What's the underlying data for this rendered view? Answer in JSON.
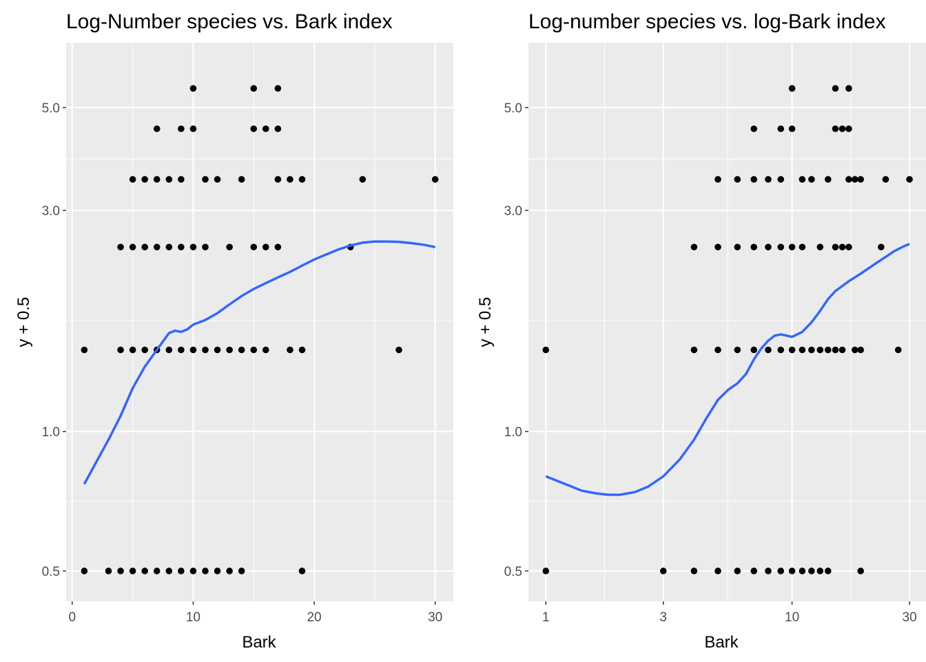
{
  "chart_data": [
    {
      "type": "scatter",
      "title": "Log-Number species vs. Bark index",
      "xlabel": "Bark",
      "ylabel": "y + 0.5",
      "xscale": "linear",
      "yscale": "log",
      "xlim": [
        -0.5,
        31.5
      ],
      "ylim": [
        0.43,
        6.9
      ],
      "x_ticks": [
        0,
        10,
        20,
        30
      ],
      "x_tick_labels": [
        "0",
        "10",
        "20",
        "30"
      ],
      "x_minor_ticks": [
        5,
        15,
        25
      ],
      "y_ticks": [
        0.5,
        1.0,
        3.0,
        5.0
      ],
      "y_tick_labels": [
        "0.5",
        "1.0",
        "3.0",
        "5.0"
      ],
      "y_minor_ticks": [
        0.707,
        1.732,
        3.873
      ],
      "grid": true,
      "points": [
        [
          1,
          0.5
        ],
        [
          3,
          0.5
        ],
        [
          4,
          0.5
        ],
        [
          5,
          0.5
        ],
        [
          6,
          0.5
        ],
        [
          7,
          0.5
        ],
        [
          8,
          0.5
        ],
        [
          9,
          0.5
        ],
        [
          10,
          0.5
        ],
        [
          11,
          0.5
        ],
        [
          12,
          0.5
        ],
        [
          13,
          0.5
        ],
        [
          14,
          0.5
        ],
        [
          19,
          0.5
        ],
        [
          1,
          1.5
        ],
        [
          4,
          1.5
        ],
        [
          5,
          1.5
        ],
        [
          6,
          1.5
        ],
        [
          7,
          1.5
        ],
        [
          8,
          1.5
        ],
        [
          9,
          1.5
        ],
        [
          10,
          1.5
        ],
        [
          11,
          1.5
        ],
        [
          12,
          1.5
        ],
        [
          13,
          1.5
        ],
        [
          14,
          1.5
        ],
        [
          15,
          1.5
        ],
        [
          16,
          1.5
        ],
        [
          18,
          1.5
        ],
        [
          19,
          1.5
        ],
        [
          27,
          1.5
        ],
        [
          4,
          2.5
        ],
        [
          5,
          2.5
        ],
        [
          6,
          2.5
        ],
        [
          7,
          2.5
        ],
        [
          8,
          2.5
        ],
        [
          9,
          2.5
        ],
        [
          10,
          2.5
        ],
        [
          11,
          2.5
        ],
        [
          13,
          2.5
        ],
        [
          15,
          2.5
        ],
        [
          16,
          2.5
        ],
        [
          17,
          2.5
        ],
        [
          23,
          2.5
        ],
        [
          5,
          3.5
        ],
        [
          6,
          3.5
        ],
        [
          7,
          3.5
        ],
        [
          8,
          3.5
        ],
        [
          9,
          3.5
        ],
        [
          11,
          3.5
        ],
        [
          12,
          3.5
        ],
        [
          14,
          3.5
        ],
        [
          17,
          3.5
        ],
        [
          18,
          3.5
        ],
        [
          19,
          3.5
        ],
        [
          24,
          3.5
        ],
        [
          30,
          3.5
        ],
        [
          7,
          4.5
        ],
        [
          9,
          4.5
        ],
        [
          10,
          4.5
        ],
        [
          15,
          4.5
        ],
        [
          16,
          4.5
        ],
        [
          17,
          4.5
        ],
        [
          10,
          5.5
        ],
        [
          15,
          5.5
        ],
        [
          17,
          5.5
        ]
      ],
      "smooth": [
        [
          1,
          0.77
        ],
        [
          2,
          0.86
        ],
        [
          3,
          0.96
        ],
        [
          4,
          1.08
        ],
        [
          5,
          1.24
        ],
        [
          6,
          1.38
        ],
        [
          7,
          1.5
        ],
        [
          8,
          1.63
        ],
        [
          8.5,
          1.65
        ],
        [
          9,
          1.64
        ],
        [
          9.5,
          1.66
        ],
        [
          10,
          1.7
        ],
        [
          11,
          1.74
        ],
        [
          12,
          1.8
        ],
        [
          13,
          1.88
        ],
        [
          14,
          1.96
        ],
        [
          15,
          2.03
        ],
        [
          16,
          2.09
        ],
        [
          17,
          2.15
        ],
        [
          18,
          2.21
        ],
        [
          19,
          2.28
        ],
        [
          20,
          2.35
        ],
        [
          21,
          2.41
        ],
        [
          22,
          2.47
        ],
        [
          23,
          2.52
        ],
        [
          24,
          2.555
        ],
        [
          25,
          2.57
        ],
        [
          26,
          2.57
        ],
        [
          27,
          2.565
        ],
        [
          28,
          2.55
        ],
        [
          29,
          2.53
        ],
        [
          30,
          2.5
        ]
      ],
      "smooth_color": "#3366ff",
      "point_color": "#000000"
    },
    {
      "type": "scatter",
      "title": "Log-number species vs. log-Bark index",
      "xlabel": "Bark",
      "ylabel": "y + 0.5",
      "xscale": "log",
      "yscale": "log",
      "xlim": [
        0.85,
        35
      ],
      "ylim": [
        0.43,
        6.9
      ],
      "x_ticks": [
        1,
        3,
        10,
        30
      ],
      "x_tick_labels": [
        "1",
        "3",
        "10",
        "30"
      ],
      "x_minor_ticks": [
        1.732,
        5.477,
        17.32
      ],
      "y_ticks": [
        0.5,
        1.0,
        3.0,
        5.0
      ],
      "y_tick_labels": [
        "0.5",
        "1.0",
        "3.0",
        "5.0"
      ],
      "y_minor_ticks": [
        0.707,
        1.732,
        3.873
      ],
      "grid": true,
      "points": [
        [
          1,
          0.5
        ],
        [
          3,
          0.5
        ],
        [
          4,
          0.5
        ],
        [
          5,
          0.5
        ],
        [
          6,
          0.5
        ],
        [
          7,
          0.5
        ],
        [
          8,
          0.5
        ],
        [
          9,
          0.5
        ],
        [
          10,
          0.5
        ],
        [
          11,
          0.5
        ],
        [
          12,
          0.5
        ],
        [
          13,
          0.5
        ],
        [
          14,
          0.5
        ],
        [
          19,
          0.5
        ],
        [
          1,
          1.5
        ],
        [
          4,
          1.5
        ],
        [
          5,
          1.5
        ],
        [
          6,
          1.5
        ],
        [
          7,
          1.5
        ],
        [
          8,
          1.5
        ],
        [
          9,
          1.5
        ],
        [
          10,
          1.5
        ],
        [
          11,
          1.5
        ],
        [
          12,
          1.5
        ],
        [
          13,
          1.5
        ],
        [
          14,
          1.5
        ],
        [
          15,
          1.5
        ],
        [
          16,
          1.5
        ],
        [
          18,
          1.5
        ],
        [
          19,
          1.5
        ],
        [
          27,
          1.5
        ],
        [
          4,
          2.5
        ],
        [
          5,
          2.5
        ],
        [
          6,
          2.5
        ],
        [
          7,
          2.5
        ],
        [
          8,
          2.5
        ],
        [
          9,
          2.5
        ],
        [
          10,
          2.5
        ],
        [
          11,
          2.5
        ],
        [
          13,
          2.5
        ],
        [
          15,
          2.5
        ],
        [
          16,
          2.5
        ],
        [
          17,
          2.5
        ],
        [
          23,
          2.5
        ],
        [
          5,
          3.5
        ],
        [
          6,
          3.5
        ],
        [
          7,
          3.5
        ],
        [
          8,
          3.5
        ],
        [
          9,
          3.5
        ],
        [
          11,
          3.5
        ],
        [
          12,
          3.5
        ],
        [
          14,
          3.5
        ],
        [
          17,
          3.5
        ],
        [
          18,
          3.5
        ],
        [
          19,
          3.5
        ],
        [
          24,
          3.5
        ],
        [
          30,
          3.5
        ],
        [
          7,
          4.5
        ],
        [
          9,
          4.5
        ],
        [
          10,
          4.5
        ],
        [
          15,
          4.5
        ],
        [
          16,
          4.5
        ],
        [
          17,
          4.5
        ],
        [
          10,
          5.5
        ],
        [
          15,
          5.5
        ],
        [
          17,
          5.5
        ]
      ],
      "smooth": [
        [
          1,
          0.8
        ],
        [
          1.2,
          0.77
        ],
        [
          1.4,
          0.745
        ],
        [
          1.6,
          0.735
        ],
        [
          1.8,
          0.73
        ],
        [
          2.0,
          0.73
        ],
        [
          2.3,
          0.74
        ],
        [
          2.6,
          0.76
        ],
        [
          3.0,
          0.8
        ],
        [
          3.5,
          0.87
        ],
        [
          4.0,
          0.96
        ],
        [
          4.5,
          1.07
        ],
        [
          5.0,
          1.17
        ],
        [
          5.5,
          1.23
        ],
        [
          6.0,
          1.27
        ],
        [
          6.5,
          1.33
        ],
        [
          7.0,
          1.43
        ],
        [
          7.5,
          1.51
        ],
        [
          8.0,
          1.57
        ],
        [
          8.5,
          1.61
        ],
        [
          9.0,
          1.62
        ],
        [
          9.5,
          1.61
        ],
        [
          10,
          1.6
        ],
        [
          11,
          1.64
        ],
        [
          12,
          1.72
        ],
        [
          13,
          1.82
        ],
        [
          14,
          1.93
        ],
        [
          15,
          2.01
        ],
        [
          16,
          2.06
        ],
        [
          17,
          2.11
        ],
        [
          18,
          2.15
        ],
        [
          19,
          2.19
        ],
        [
          20,
          2.23
        ],
        [
          22,
          2.31
        ],
        [
          24,
          2.38
        ],
        [
          26,
          2.45
        ],
        [
          28,
          2.5
        ],
        [
          30,
          2.54
        ]
      ],
      "smooth_color": "#3366ff",
      "point_color": "#000000"
    }
  ]
}
